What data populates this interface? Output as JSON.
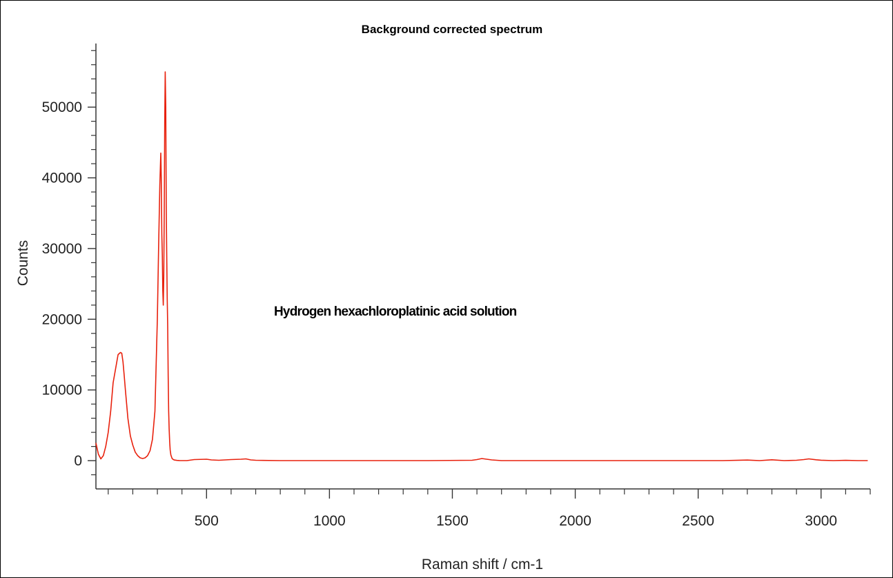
{
  "chart_data": {
    "type": "line",
    "title": "Background corrected spectrum",
    "xlabel": "Raman shift / cm-1",
    "ylabel": "Counts",
    "annotation": "Hydrogen hexachloroplatinic acid solution",
    "xlim": [
      50,
      3200
    ],
    "ylim": [
      -4000,
      59000
    ],
    "xticks": [
      500,
      1000,
      1500,
      2000,
      2500,
      3000
    ],
    "xtick_labels": [
      "500",
      "1000",
      "1500",
      "2000",
      "2500",
      "3000"
    ],
    "yticks": [
      0,
      10000,
      20000,
      30000,
      40000,
      50000
    ],
    "ytick_labels": [
      "0",
      "10000",
      "20000",
      "30000",
      "40000",
      "50000"
    ],
    "grid": false,
    "series": [
      {
        "color": "#e8200c",
        "x": [
          50,
          60,
          70,
          80,
          90,
          100,
          110,
          120,
          130,
          140,
          150,
          155,
          160,
          165,
          170,
          175,
          180,
          190,
          200,
          210,
          220,
          230,
          240,
          250,
          260,
          270,
          280,
          290,
          300,
          305,
          310,
          314,
          316,
          318,
          320,
          322,
          324,
          326,
          328,
          330,
          332,
          334,
          336,
          338,
          340,
          342,
          344,
          346,
          348,
          350,
          352,
          355,
          360,
          365,
          370,
          380,
          390,
          400,
          420,
          450,
          500,
          520,
          550,
          600,
          640,
          660,
          680,
          700,
          800,
          1000,
          1200,
          1400,
          1580,
          1600,
          1620,
          1640,
          1660,
          1680,
          1700,
          1800,
          2000,
          2200,
          2400,
          2600,
          2700,
          2750,
          2800,
          2850,
          2900,
          2930,
          2950,
          2980,
          3000,
          3050,
          3100,
          3150,
          3190
        ],
        "y": [
          2500,
          900,
          250,
          700,
          2000,
          4000,
          7000,
          11000,
          13000,
          15000,
          15300,
          15200,
          14000,
          12000,
          10000,
          8000,
          6000,
          3500,
          2200,
          1200,
          700,
          400,
          300,
          400,
          700,
          1400,
          3000,
          7000,
          20000,
          30000,
          39000,
          43500,
          40000,
          32000,
          29000,
          24000,
          22000,
          26000,
          35000,
          48000,
          55000,
          50000,
          36000,
          29000,
          23000,
          19000,
          12000,
          7000,
          4500,
          2600,
          1500,
          800,
          300,
          150,
          80,
          30,
          10,
          0,
          0,
          150,
          200,
          100,
          50,
          150,
          200,
          250,
          100,
          50,
          0,
          0,
          0,
          0,
          50,
          150,
          300,
          200,
          100,
          50,
          0,
          0,
          0,
          0,
          0,
          0,
          80,
          0,
          120,
          0,
          50,
          150,
          250,
          120,
          60,
          0,
          40,
          0,
          0
        ]
      }
    ]
  }
}
